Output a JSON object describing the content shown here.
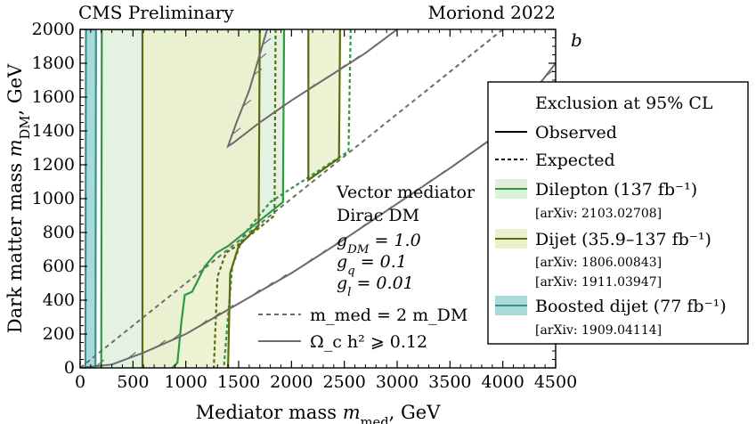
{
  "header": {
    "left": "CMS Preliminary",
    "right": "Moriond 2022",
    "panel_tag": "b"
  },
  "chart_data": {
    "type": "line",
    "title": "",
    "xlabel": "Mediator mass m_med, GeV",
    "ylabel": "Dark matter mass m_DM, GeV",
    "xlim": [
      0,
      4500
    ],
    "ylim": [
      0,
      2000
    ],
    "x_ticks": [
      0,
      500,
      1000,
      1500,
      2000,
      2500,
      3000,
      3500,
      4000,
      4500
    ],
    "y_ticks": [
      0,
      200,
      400,
      600,
      800,
      1000,
      1200,
      1400,
      1600,
      1800,
      2000
    ],
    "grid": false,
    "legend_position": "right",
    "colors": {
      "dilepton": "#2e9940",
      "dilepton_fill": "#dff0dc",
      "dijet": "#5c6a10",
      "dijet_fill": "#ebf1cc",
      "boosted": "#3d8f8f",
      "boosted_fill": "#a8dbd8",
      "relic": "#6b6b6b",
      "diagonal": "#6b6b6b"
    },
    "model_text": {
      "line1": "Vector mediator",
      "line2": "Dirac DM",
      "gdm": "g_DM = 1.0",
      "gq": "g_q = 0.1",
      "gl": "g_l = 0.01"
    },
    "inner_legend": {
      "diagonal": "m_med = 2 m_DM",
      "relic": "Ω_c h² ⩾ 0.12"
    },
    "legend": {
      "title": "Exclusion at 95% CL",
      "observed": "Observed",
      "expected": "Expected",
      "dilepton": "Dilepton (137 fb⁻¹)",
      "dilepton_ref": "[arXiv: 2103.02708]",
      "dijet": "Dijet (35.9–137 fb⁻¹)",
      "dijet_ref1": "[arXiv: 1806.00843]",
      "dijet_ref2": "[arXiv: 1911.03947]",
      "boosted": "Boosted dijet (77 fb⁻¹)",
      "boosted_ref": "[arXiv: 1909.04114]"
    },
    "series": [
      {
        "name": "Boosted dijet",
        "style": "observed",
        "points": [
          [
            50,
            0
          ],
          [
            55,
            2000
          ],
          [
            150,
            2000
          ],
          [
            145,
            0
          ]
        ]
      },
      {
        "name": "Dilepton",
        "style": "observed",
        "points": [
          [
            200,
            0
          ],
          [
            205,
            2000
          ],
          [
            1930,
            2000
          ],
          [
            1920,
            980
          ],
          [
            1400,
            720
          ],
          [
            1290,
            680
          ],
          [
            1180,
            600
          ],
          [
            1060,
            450
          ],
          [
            990,
            430
          ],
          [
            960,
            280
          ],
          [
            920,
            30
          ],
          [
            870,
            0
          ]
        ]
      },
      {
        "name": "Dilepton",
        "style": "expected",
        "points": [
          [
            2560,
            2000
          ],
          [
            2540,
            1280
          ],
          [
            1800,
            980
          ],
          [
            1550,
            790
          ],
          [
            1440,
            600
          ],
          [
            1380,
            160
          ],
          [
            1360,
            0
          ]
        ]
      },
      {
        "name": "Dijet",
        "style": "observed",
        "points": [
          [
            590,
            0
          ],
          [
            590,
            2000
          ],
          [
            1700,
            2000
          ],
          [
            1690,
            840
          ],
          [
            1500,
            720
          ],
          [
            1420,
            560
          ],
          [
            1400,
            0
          ]
        ]
      },
      {
        "name": "Dijet",
        "style": "expected",
        "points": [
          [
            1850,
            2000
          ],
          [
            1840,
            900
          ],
          [
            1480,
            720
          ],
          [
            1380,
            680
          ],
          [
            1300,
            540
          ],
          [
            1265,
            0
          ]
        ]
      },
      {
        "name": "Dijet",
        "style": "observed",
        "points": [
          [
            2160,
            2000
          ],
          [
            2160,
            1110
          ],
          [
            2450,
            1240
          ],
          [
            2460,
            2000
          ]
        ]
      },
      {
        "name": "Relic density",
        "style": "relic",
        "points": [
          [
            0,
            0
          ],
          [
            300,
            20
          ],
          [
            600,
            90
          ],
          [
            1000,
            200
          ],
          [
            1500,
            380
          ],
          [
            2000,
            560
          ],
          [
            2500,
            760
          ],
          [
            3000,
            970
          ],
          [
            3500,
            1180
          ],
          [
            4000,
            1400
          ],
          [
            4500,
            1800
          ]
        ]
      },
      {
        "name": "Relic density",
        "style": "relic",
        "points": [
          [
            1770,
            2000
          ],
          [
            1600,
            1640
          ],
          [
            1480,
            1450
          ],
          [
            1400,
            1310
          ],
          [
            1450,
            1330
          ],
          [
            1700,
            1450
          ],
          [
            2000,
            1580
          ],
          [
            2300,
            1700
          ],
          [
            2700,
            1860
          ],
          [
            3000,
            2000
          ]
        ]
      },
      {
        "name": "m_med = 2 m_DM",
        "style": "diagonal",
        "points": [
          [
            0,
            0
          ],
          [
            4000,
            2000
          ]
        ]
      }
    ]
  }
}
